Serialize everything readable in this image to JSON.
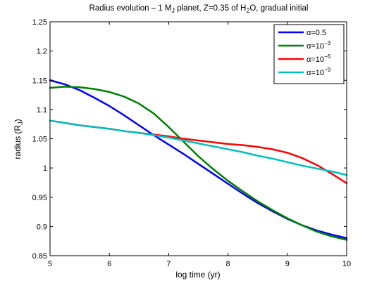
{
  "chart_data": {
    "type": "line",
    "title": {
      "prefix": "Radius evolution – 1 M",
      "sub1": "J",
      "middle": " planet, Z=0.35 of H",
      "sub2": "2",
      "suffix": "O, gradual initial"
    },
    "xlabel": "log time (yr)",
    "ylabel": {
      "main": "radius (R",
      "sub": "J",
      "close": ")"
    },
    "xlim": [
      5,
      10
    ],
    "ylim": [
      0.85,
      1.25
    ],
    "xticks": [
      5,
      6,
      7,
      8,
      9,
      10
    ],
    "yticks": [
      0.85,
      0.9,
      0.95,
      1,
      1.05,
      1.1,
      1.15,
      1.2,
      1.25
    ],
    "xtick_labels": [
      "5",
      "6",
      "7",
      "8",
      "9",
      "10"
    ],
    "ytick_labels": [
      "0.85",
      "0.9",
      "0.95",
      "1",
      "1.05",
      "1.1",
      "1.15",
      "1.2",
      "1.25"
    ],
    "grid": false,
    "legend_position": "top-right",
    "series": [
      {
        "legend": {
          "symbol": "α",
          "text": "=0.5",
          "exp": ""
        },
        "color": "#0000ff",
        "x": [
          5.0,
          5.25,
          5.5,
          5.75,
          6.0,
          6.25,
          6.5,
          6.75,
          7.0,
          7.25,
          7.5,
          7.75,
          8.0,
          8.25,
          8.5,
          8.75,
          9.0,
          9.25,
          9.5,
          9.75,
          10.0
        ],
        "y": [
          1.15,
          1.143,
          1.133,
          1.12,
          1.106,
          1.09,
          1.073,
          1.056,
          1.04,
          1.024,
          1.007,
          0.99,
          0.973,
          0.956,
          0.94,
          0.926,
          0.913,
          0.902,
          0.893,
          0.886,
          0.88
        ]
      },
      {
        "legend": {
          "symbol": "α",
          "text": "=10",
          "exp": "−3"
        },
        "color": "#008000",
        "x": [
          5.0,
          5.25,
          5.5,
          5.75,
          6.0,
          6.25,
          6.5,
          6.75,
          7.0,
          7.25,
          7.5,
          7.75,
          8.0,
          8.25,
          8.5,
          8.75,
          9.0,
          9.25,
          9.5,
          9.75,
          10.0
        ],
        "y": [
          1.137,
          1.139,
          1.138,
          1.135,
          1.13,
          1.122,
          1.11,
          1.093,
          1.07,
          1.045,
          1.02,
          0.998,
          0.978,
          0.96,
          0.943,
          0.928,
          0.914,
          0.902,
          0.891,
          0.883,
          0.877
        ]
      },
      {
        "legend": {
          "symbol": "α",
          "text": "=10",
          "exp": "−6"
        },
        "color": "#ff0000",
        "x": [
          5.0,
          5.25,
          5.5,
          5.75,
          6.0,
          6.25,
          6.5,
          6.75,
          7.0,
          7.25,
          7.5,
          7.75,
          8.0,
          8.25,
          8.5,
          8.75,
          9.0,
          9.25,
          9.5,
          9.75,
          10.0
        ],
        "y": [
          1.081,
          1.077,
          1.073,
          1.07,
          1.067,
          1.063,
          1.06,
          1.057,
          1.054,
          1.05,
          1.047,
          1.044,
          1.041,
          1.039,
          1.036,
          1.032,
          1.026,
          1.017,
          1.005,
          0.99,
          0.974
        ]
      },
      {
        "legend": {
          "symbol": "α",
          "text": "=10",
          "exp": "−9"
        },
        "color": "#00bfbf",
        "x": [
          5.0,
          5.25,
          5.5,
          5.75,
          6.0,
          6.25,
          6.5,
          6.75,
          7.0,
          7.25,
          7.5,
          7.75,
          8.0,
          8.25,
          8.5,
          8.75,
          9.0,
          9.25,
          9.5,
          9.75,
          10.0
        ],
        "y": [
          1.081,
          1.077,
          1.073,
          1.07,
          1.067,
          1.063,
          1.06,
          1.056,
          1.052,
          1.047,
          1.042,
          1.037,
          1.032,
          1.027,
          1.021,
          1.016,
          1.01,
          1.004,
          0.999,
          0.994,
          0.988
        ]
      }
    ]
  }
}
